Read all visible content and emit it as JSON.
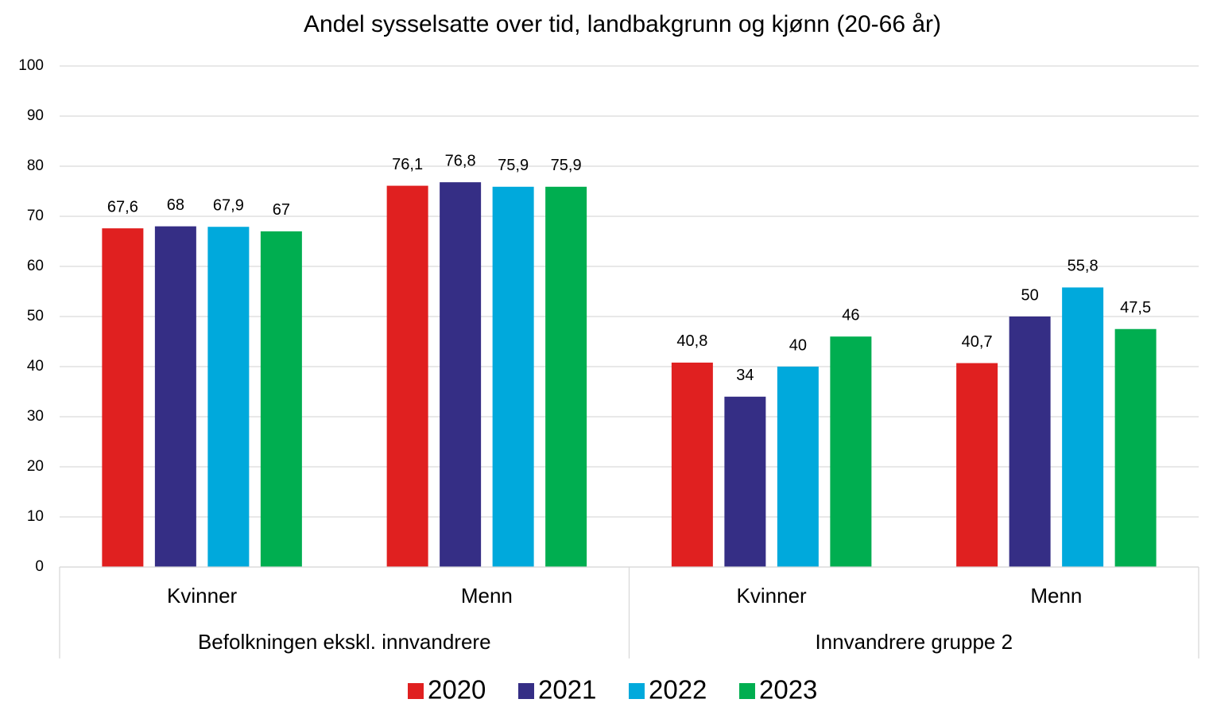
{
  "chart_data": {
    "type": "bar",
    "title": "Andel sysselsatte over tid, landbakgrunn og kjønn (20-66 år)",
    "groups": [
      {
        "name": "Befolkningen ekskl. innvandrere",
        "categories": [
          "Kvinner",
          "Menn"
        ]
      },
      {
        "name": "Innvandrere gruppe 2",
        "categories": [
          "Kvinner",
          "Menn"
        ]
      }
    ],
    "series": [
      {
        "name": "2020",
        "color": "#e02020",
        "values": [
          67.6,
          76.1,
          40.8,
          40.7
        ],
        "value_labels": [
          "67,6",
          "76,1",
          "40,8",
          "40,7"
        ]
      },
      {
        "name": "2021",
        "color": "#352e85",
        "values": [
          68,
          76.8,
          34,
          50
        ],
        "value_labels": [
          "68",
          "76,8",
          "34",
          "50"
        ]
      },
      {
        "name": "2022",
        "color": "#00a9dc",
        "values": [
          67.9,
          75.9,
          40,
          55.8
        ],
        "value_labels": [
          "67,9",
          "75,9",
          "40",
          "55,8"
        ]
      },
      {
        "name": "2023",
        "color": "#00ae50",
        "values": [
          67,
          75.9,
          46,
          47.5
        ],
        "value_labels": [
          "67",
          "75,9",
          "46",
          "47,5"
        ]
      }
    ],
    "ylim": [
      0,
      100
    ],
    "yticks": [
      0,
      10,
      20,
      30,
      40,
      50,
      60,
      70,
      80,
      90,
      100
    ],
    "grid": true,
    "legend": "bottom"
  }
}
